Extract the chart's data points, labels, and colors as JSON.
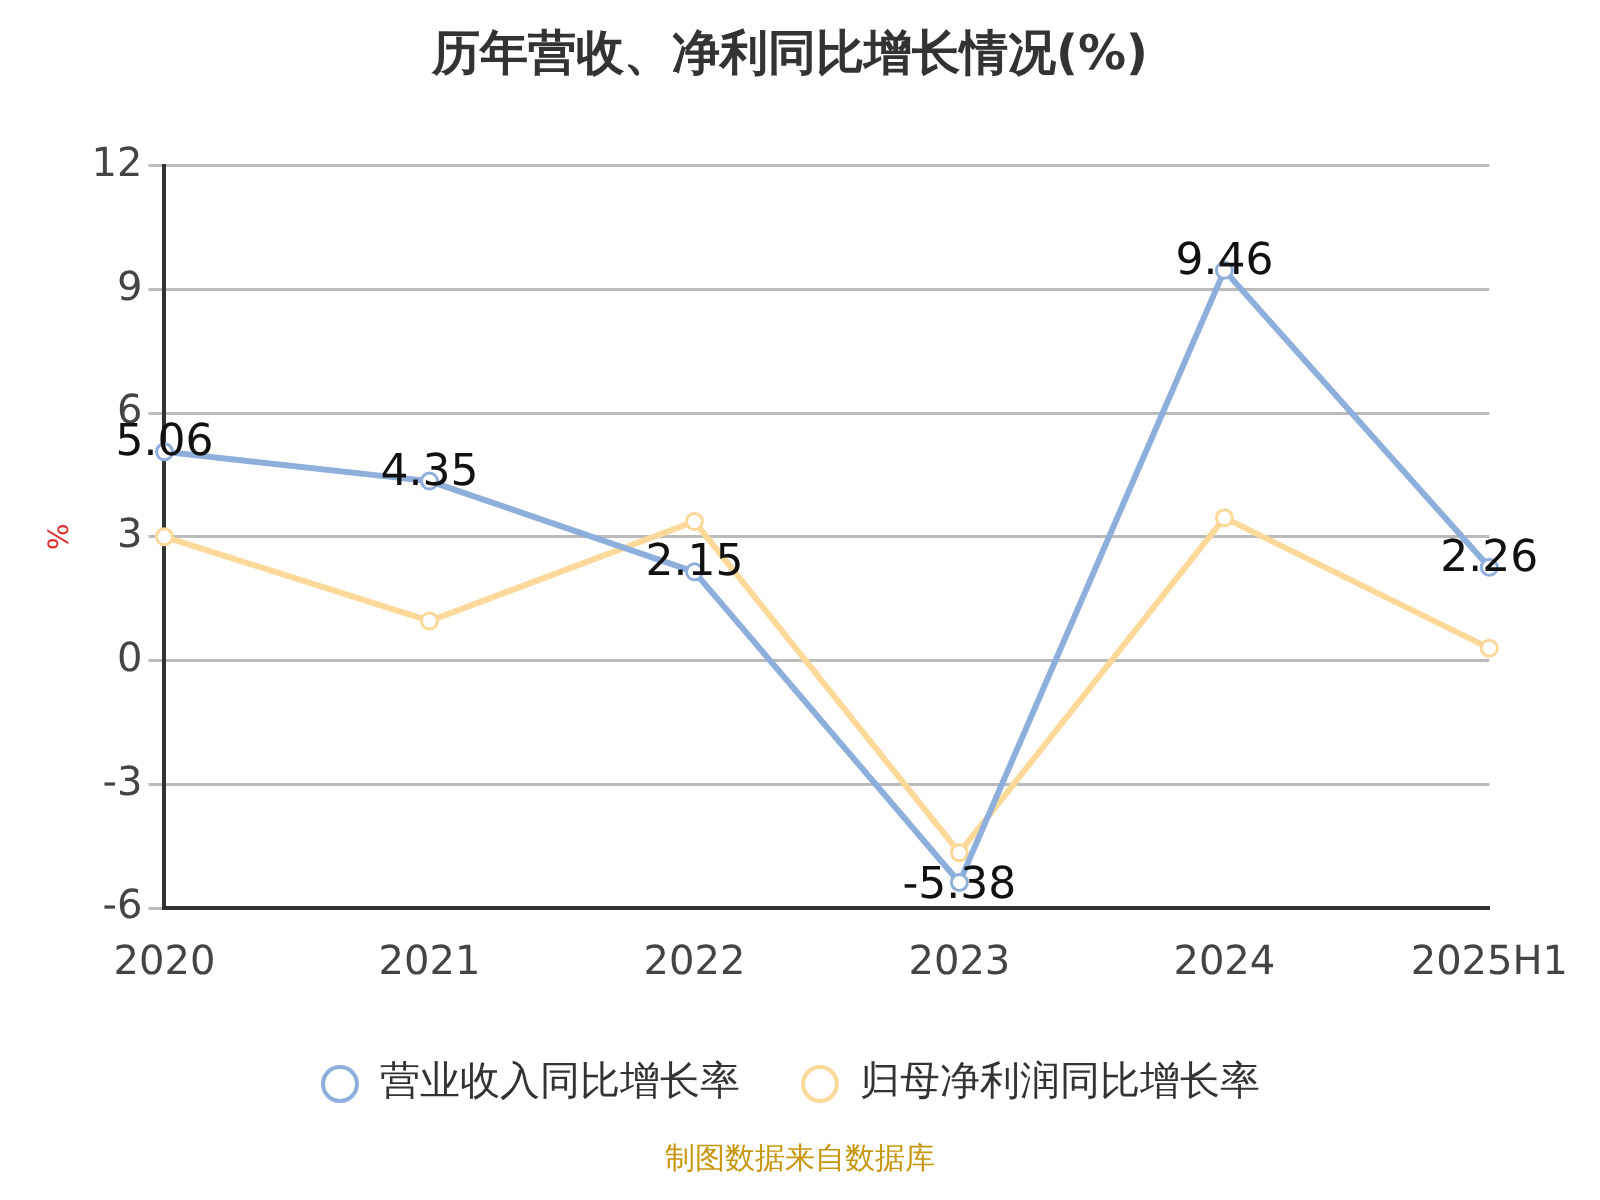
{
  "chart_data": {
    "type": "line",
    "title": "历年营收、净利同比增长情况(%)",
    "ylabel": "%",
    "categories": [
      "2020",
      "2021",
      "2022",
      "2023",
      "2024",
      "2025H1"
    ],
    "series": [
      {
        "name": "营业收入同比增长率",
        "color": "#8eaedc",
        "values": [
          5.06,
          4.35,
          2.15,
          -5.38,
          9.46,
          2.26
        ],
        "value_labels": [
          "5.06",
          "4.35",
          "2.15",
          "-5.38",
          "9.46",
          "2.26"
        ]
      },
      {
        "name": "归母净利润同比增长率",
        "color": "#fdd999",
        "values": [
          3.0,
          0.96,
          3.37,
          -4.66,
          3.46,
          0.3
        ]
      }
    ],
    "ylim": [
      -6,
      12
    ],
    "yticks": [
      -6,
      -3,
      0,
      3,
      6,
      9,
      12
    ],
    "grid": "y",
    "legend": "bottom",
    "marker": "circle",
    "line_style": "solid",
    "annotations": [
      "制图数据来自数据库"
    ]
  }
}
